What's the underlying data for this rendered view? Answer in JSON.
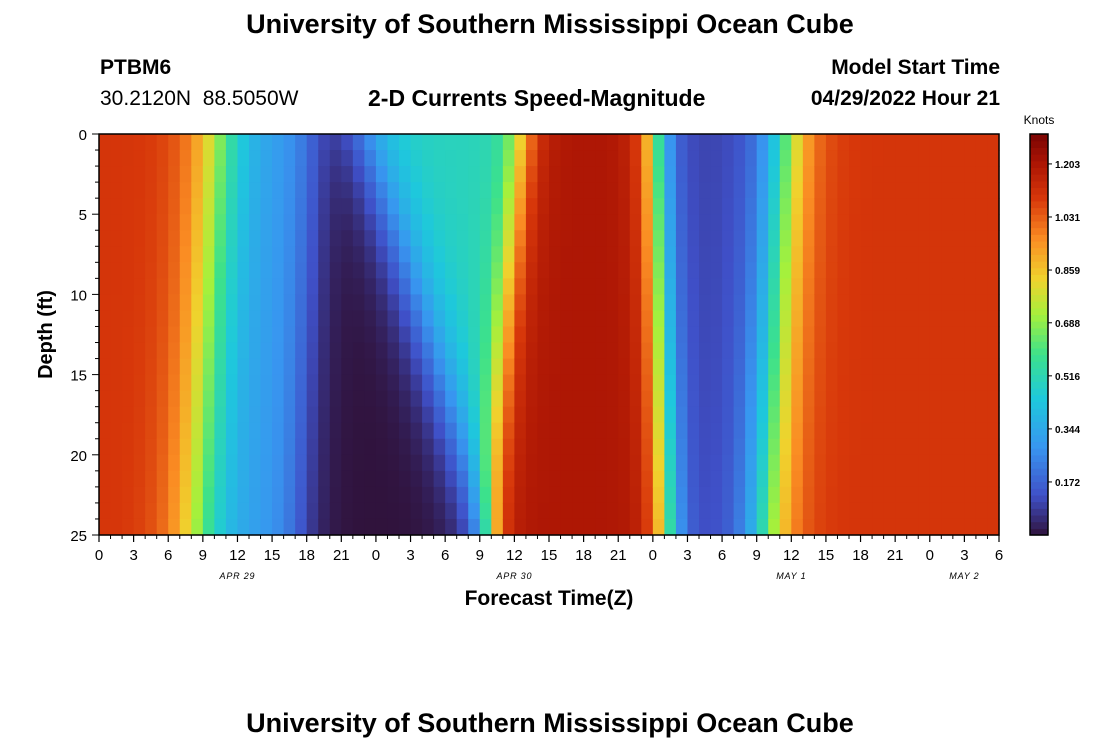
{
  "header": {
    "title": "University of Southern Mississippi Ocean Cube",
    "station_id": "PTBM6",
    "station_coords": "30.2120N  88.5050W",
    "plot_title": "2-D Currents Speed-Magnitude",
    "model_start_label": "Model Start Time",
    "model_start_value": "04/29/2022 Hour 21"
  },
  "footer": {
    "title": "University of Southern Mississippi Ocean Cube"
  },
  "chart_data": {
    "type": "heatmap",
    "title": "2-D Currents Speed-Magnitude",
    "xlabel": "Forecast Time(Z)",
    "ylabel": "Depth (ft)",
    "x_range_hours": [
      0,
      78
    ],
    "y_range_ft": [
      0,
      25
    ],
    "y_inverted": true,
    "x_tick_labels": [
      "0",
      "3",
      "6",
      "9",
      "12",
      "15",
      "18",
      "21",
      "0",
      "3",
      "6",
      "9",
      "12",
      "15",
      "18",
      "21",
      "0",
      "3",
      "6",
      "9",
      "12",
      "15",
      "18",
      "21",
      "0",
      "3",
      "6"
    ],
    "y_ticks": [
      0,
      5,
      10,
      15,
      20,
      25
    ],
    "date_labels": [
      {
        "label": "APR 29",
        "hour": 12
      },
      {
        "label": "APR 30",
        "hour": 36
      },
      {
        "label": "MAY 1",
        "hour": 60
      },
      {
        "label": "MAY 2",
        "hour": 75
      }
    ],
    "colorbar": {
      "unit": "Knots",
      "min": 0.0,
      "max": 1.3,
      "ticks": [
        0.172,
        0.344,
        0.516,
        0.688,
        0.859,
        1.031,
        1.203
      ],
      "tick_labels": [
        "0.172",
        "0.344",
        "0.516",
        "0.688",
        "0.859",
        "1.031",
        "1.203"
      ]
    },
    "features": [
      {
        "hour": 6,
        "depth": 10,
        "speed": 1.1,
        "note": "strong current, hours 1-9"
      },
      {
        "hour": 13,
        "depth": 12,
        "speed": 0.3
      },
      {
        "hour": 23,
        "depth": 14,
        "speed": 0.0,
        "note": "minimum near hour 23, depth 14 ft"
      },
      {
        "hour": 30,
        "depth": 2,
        "speed": 0.5
      },
      {
        "hour": 42,
        "depth": 8,
        "speed": 1.2,
        "note": "strong core, hours 40-46"
      },
      {
        "hour": 55,
        "depth": 6,
        "speed": 0.1
      },
      {
        "hour": 63,
        "depth": 8,
        "speed": 1.1,
        "note": "strong core, hours 61-66"
      },
      {
        "hour": 76,
        "depth": 10,
        "speed": 1.1
      }
    ]
  }
}
